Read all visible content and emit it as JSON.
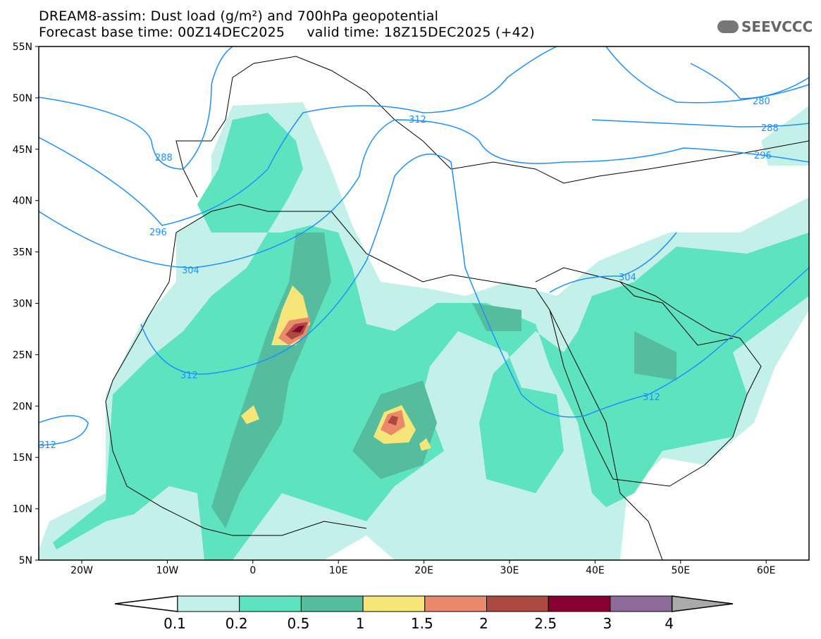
{
  "header": {
    "title": "DREAM8-assim: Dust load (g/m²) and 700hPa geopotential",
    "subtitle": "Forecast base time: 00Z14DEC2025     valid time: 18Z15DEC2025 (+42)",
    "logo_text": "SEEVCCC"
  },
  "axes": {
    "lat_labels": [
      "55N",
      "50N",
      "45N",
      "40N",
      "35N",
      "30N",
      "25N",
      "20N",
      "15N",
      "10N",
      "5N"
    ],
    "lon_labels": [
      "20W",
      "10W",
      "0",
      "10E",
      "20E",
      "30E",
      "40E",
      "50E",
      "60E"
    ]
  },
  "contours": {
    "labels": [
      "288",
      "296",
      "304",
      "312",
      "312",
      "312",
      "312",
      "304",
      "280",
      "288",
      "296"
    ],
    "color": "#1e90ff"
  },
  "colorbar": {
    "ticks": [
      "0.1",
      "0.2",
      "0.5",
      "1",
      "1.5",
      "2",
      "2.5",
      "3",
      "4"
    ],
    "colors": [
      "#c3f1e9",
      "#5de4bf",
      "#55bd9e",
      "#f6e67a",
      "#ea8a6a",
      "#ac4a41",
      "#87002f",
      "#8e6a9b"
    ],
    "over_color": "#aaaaaa",
    "under_color": "#ffffff"
  }
}
